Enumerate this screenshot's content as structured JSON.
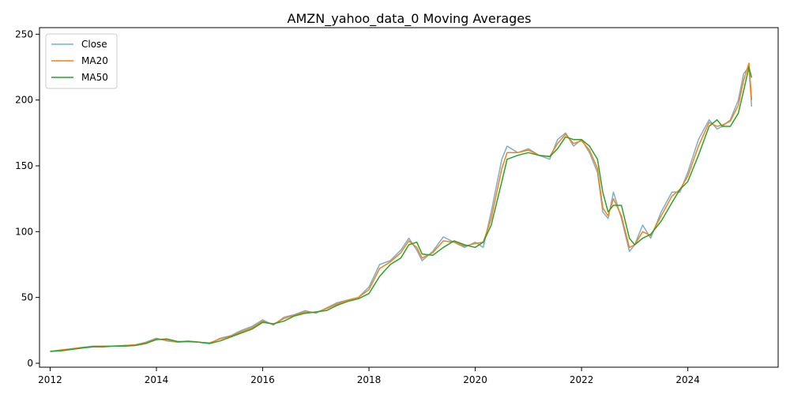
{
  "chart_data": {
    "type": "line",
    "title": "AMZN_yahoo_data_0 Moving Averages",
    "xlabel": "",
    "ylabel": "",
    "xlim": [
      2011.8,
      2025.7
    ],
    "ylim": [
      -3,
      255
    ],
    "x_ticks": [
      2012,
      2014,
      2016,
      2018,
      2020,
      2022,
      2024
    ],
    "x_tick_labels": [
      "2012",
      "2014",
      "2016",
      "2018",
      "2020",
      "2022",
      "2024"
    ],
    "y_ticks": [
      0,
      50,
      100,
      150,
      200,
      250
    ],
    "y_tick_labels": [
      "0",
      "50",
      "100",
      "150",
      "200",
      "250"
    ],
    "grid": false,
    "legend": {
      "position": "top-left"
    },
    "series": [
      {
        "name": "Close",
        "color": "#1f77b4",
        "opacity": 0.6,
        "x": [
          2012.0,
          2012.2,
          2012.4,
          2012.6,
          2012.8,
          2013.0,
          2013.2,
          2013.4,
          2013.6,
          2013.8,
          2014.0,
          2014.2,
          2014.4,
          2014.6,
          2014.8,
          2015.0,
          2015.2,
          2015.4,
          2015.6,
          2015.8,
          2016.0,
          2016.2,
          2016.4,
          2016.6,
          2016.8,
          2017.0,
          2017.2,
          2017.4,
          2017.6,
          2017.8,
          2018.0,
          2018.2,
          2018.4,
          2018.6,
          2018.75,
          2018.9,
          2019.0,
          2019.2,
          2019.4,
          2019.6,
          2019.8,
          2020.0,
          2020.15,
          2020.3,
          2020.5,
          2020.6,
          2020.8,
          2021.0,
          2021.2,
          2021.4,
          2021.55,
          2021.7,
          2021.85,
          2022.0,
          2022.15,
          2022.3,
          2022.4,
          2022.5,
          2022.6,
          2022.75,
          2022.9,
          2023.0,
          2023.15,
          2023.3,
          2023.5,
          2023.7,
          2023.85,
          2024.0,
          2024.2,
          2024.4,
          2024.55,
          2024.65,
          2024.8,
          2024.95,
          2025.05,
          2025.15,
          2025.2
        ],
        "y": [
          9,
          10,
          11,
          12,
          13,
          13,
          13,
          13.5,
          14,
          16,
          19,
          17,
          16,
          17,
          16,
          15,
          19,
          21,
          25,
          28,
          33,
          29,
          35,
          37,
          40,
          38,
          42,
          46,
          48,
          50,
          58,
          75,
          78,
          86,
          95,
          86,
          78,
          85,
          96,
          92,
          88,
          92,
          88,
          115,
          155,
          165,
          160,
          163,
          158,
          155,
          170,
          175,
          165,
          170,
          160,
          145,
          115,
          110,
          130,
          110,
          85,
          90,
          105,
          95,
          115,
          130,
          130,
          145,
          170,
          185,
          178,
          180,
          185,
          200,
          220,
          225,
          195
        ]
      },
      {
        "name": "MA20",
        "color": "#ff7f0e",
        "opacity": 1,
        "x": [
          2012.0,
          2012.2,
          2012.4,
          2012.6,
          2012.8,
          2013.0,
          2013.2,
          2013.4,
          2013.6,
          2013.8,
          2014.0,
          2014.2,
          2014.4,
          2014.6,
          2014.8,
          2015.0,
          2015.2,
          2015.4,
          2015.6,
          2015.8,
          2016.0,
          2016.2,
          2016.4,
          2016.6,
          2016.8,
          2017.0,
          2017.2,
          2017.4,
          2017.6,
          2017.8,
          2018.0,
          2018.2,
          2018.4,
          2018.6,
          2018.75,
          2018.9,
          2019.0,
          2019.2,
          2019.4,
          2019.6,
          2019.8,
          2020.0,
          2020.15,
          2020.3,
          2020.5,
          2020.6,
          2020.8,
          2021.0,
          2021.2,
          2021.4,
          2021.55,
          2021.7,
          2021.85,
          2022.0,
          2022.15,
          2022.3,
          2022.4,
          2022.5,
          2022.6,
          2022.75,
          2022.9,
          2023.0,
          2023.15,
          2023.3,
          2023.5,
          2023.7,
          2023.85,
          2024.0,
          2024.2,
          2024.4,
          2024.55,
          2024.65,
          2024.8,
          2024.95,
          2025.05,
          2025.15,
          2025.2
        ],
        "y": [
          9,
          10,
          11,
          12,
          12.5,
          13,
          13,
          13.5,
          14,
          15.5,
          18.5,
          17.5,
          16,
          16.5,
          16,
          15.5,
          18.5,
          20.5,
          24,
          27,
          32,
          29.5,
          34,
          36.5,
          39,
          38.5,
          41.5,
          45,
          48,
          50,
          56,
          72,
          77,
          84,
          93,
          88,
          80,
          84,
          93,
          92,
          89,
          91,
          92,
          110,
          148,
          160,
          160,
          162,
          158,
          157,
          167,
          174,
          167,
          169,
          162,
          148,
          118,
          112,
          125,
          112,
          88,
          90,
          100,
          97,
          112,
          127,
          132,
          142,
          165,
          183,
          180,
          181,
          184,
          196,
          215,
          228,
          200
        ]
      },
      {
        "name": "MA50",
        "color": "#2ca02c",
        "opacity": 1,
        "x": [
          2012.0,
          2012.2,
          2012.4,
          2012.6,
          2012.8,
          2013.0,
          2013.2,
          2013.4,
          2013.6,
          2013.8,
          2014.0,
          2014.2,
          2014.4,
          2014.6,
          2014.8,
          2015.0,
          2015.2,
          2015.4,
          2015.6,
          2015.8,
          2016.0,
          2016.2,
          2016.4,
          2016.6,
          2016.8,
          2017.0,
          2017.2,
          2017.4,
          2017.6,
          2017.8,
          2018.0,
          2018.2,
          2018.4,
          2018.6,
          2018.75,
          2018.9,
          2019.0,
          2019.2,
          2019.4,
          2019.6,
          2019.8,
          2020.0,
          2020.15,
          2020.3,
          2020.5,
          2020.6,
          2020.8,
          2021.0,
          2021.2,
          2021.4,
          2021.55,
          2021.7,
          2021.85,
          2022.0,
          2022.15,
          2022.3,
          2022.4,
          2022.5,
          2022.6,
          2022.75,
          2022.9,
          2023.0,
          2023.15,
          2023.3,
          2023.5,
          2023.7,
          2023.85,
          2024.0,
          2024.2,
          2024.4,
          2024.55,
          2024.65,
          2024.8,
          2024.95,
          2025.05,
          2025.15,
          2025.2
        ],
        "y": [
          9,
          9.5,
          10.5,
          11.5,
          12.5,
          12.5,
          13,
          13,
          13.5,
          15,
          18,
          18.5,
          16.5,
          16.5,
          16,
          15,
          17,
          20,
          23,
          26,
          31,
          30,
          32,
          36,
          38,
          39,
          40,
          44,
          47,
          49,
          53,
          66,
          75,
          80,
          90,
          92,
          83,
          82,
          88,
          93,
          90,
          88,
          92,
          105,
          138,
          155,
          158,
          160,
          158,
          157,
          163,
          172,
          170,
          170,
          165,
          155,
          130,
          115,
          120,
          120,
          95,
          90,
          95,
          98,
          108,
          122,
          132,
          138,
          158,
          180,
          185,
          180,
          180,
          190,
          207,
          225,
          217
        ]
      }
    ]
  }
}
